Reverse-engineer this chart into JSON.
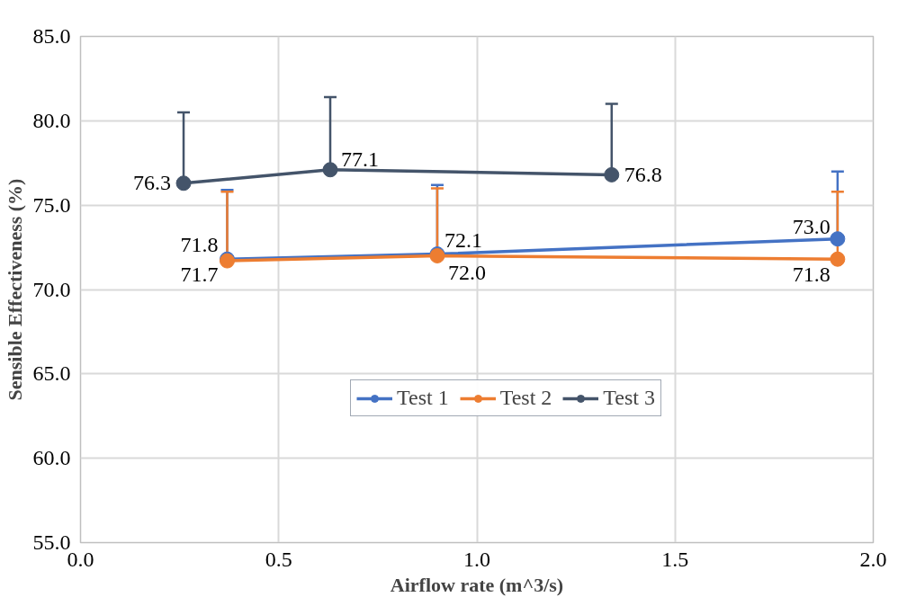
{
  "chart_data": {
    "type": "line",
    "xlabel": "Airflow rate (m^3/s)",
    "ylabel": "Sensible Effectiveness (%)",
    "xlim": [
      0,
      2
    ],
    "ylim": [
      55,
      85
    ],
    "xticks": [
      {
        "value": 0,
        "label": "0.0"
      },
      {
        "value": 0.5,
        "label": "0.5"
      },
      {
        "value": 1,
        "label": "1.0"
      },
      {
        "value": 1.5,
        "label": "1.5"
      },
      {
        "value": 2,
        "label": "2.0"
      }
    ],
    "yticks": [
      {
        "value": 55,
        "label": "55.0"
      },
      {
        "value": 60,
        "label": "60.0"
      },
      {
        "value": 65,
        "label": "65.0"
      },
      {
        "value": 70,
        "label": "70.0"
      },
      {
        "value": 75,
        "label": "75.0"
      },
      {
        "value": 80,
        "label": "80.0"
      },
      {
        "value": 85,
        "label": "85.0"
      }
    ],
    "grid": true,
    "legend": "bottom",
    "marker": "circle",
    "line_style": "solid",
    "series": [
      {
        "name": "Test 1",
        "color": "#4472c4",
        "x": [
          0.37,
          0.9,
          1.91
        ],
        "values": [
          71.8,
          72.1,
          73.0
        ],
        "value_labels": [
          "71.8",
          "72.1",
          "73.0"
        ],
        "errors": [
          [
            71.8,
            75.9
          ],
          [
            72.1,
            76.2
          ],
          [
            73.0,
            77.0
          ]
        ]
      },
      {
        "name": "Test 2",
        "color": "#ed7d31",
        "x": [
          0.37,
          0.9,
          1.91
        ],
        "values": [
          71.7,
          72.0,
          71.8
        ],
        "value_labels": [
          "71.7",
          "72.0",
          "71.8"
        ],
        "errors": [
          [
            71.7,
            75.8
          ],
          [
            72.0,
            76.0
          ],
          [
            71.8,
            75.8
          ]
        ]
      },
      {
        "name": "Test 3",
        "color": "#44546a",
        "x": [
          0.26,
          0.63,
          1.34
        ],
        "values": [
          76.3,
          77.1,
          76.8
        ],
        "value_labels": [
          "76.3",
          "77.1",
          "76.8"
        ],
        "errors": [
          [
            76.3,
            80.5
          ],
          [
            77.1,
            81.4
          ],
          [
            76.8,
            81.0
          ]
        ]
      }
    ]
  }
}
